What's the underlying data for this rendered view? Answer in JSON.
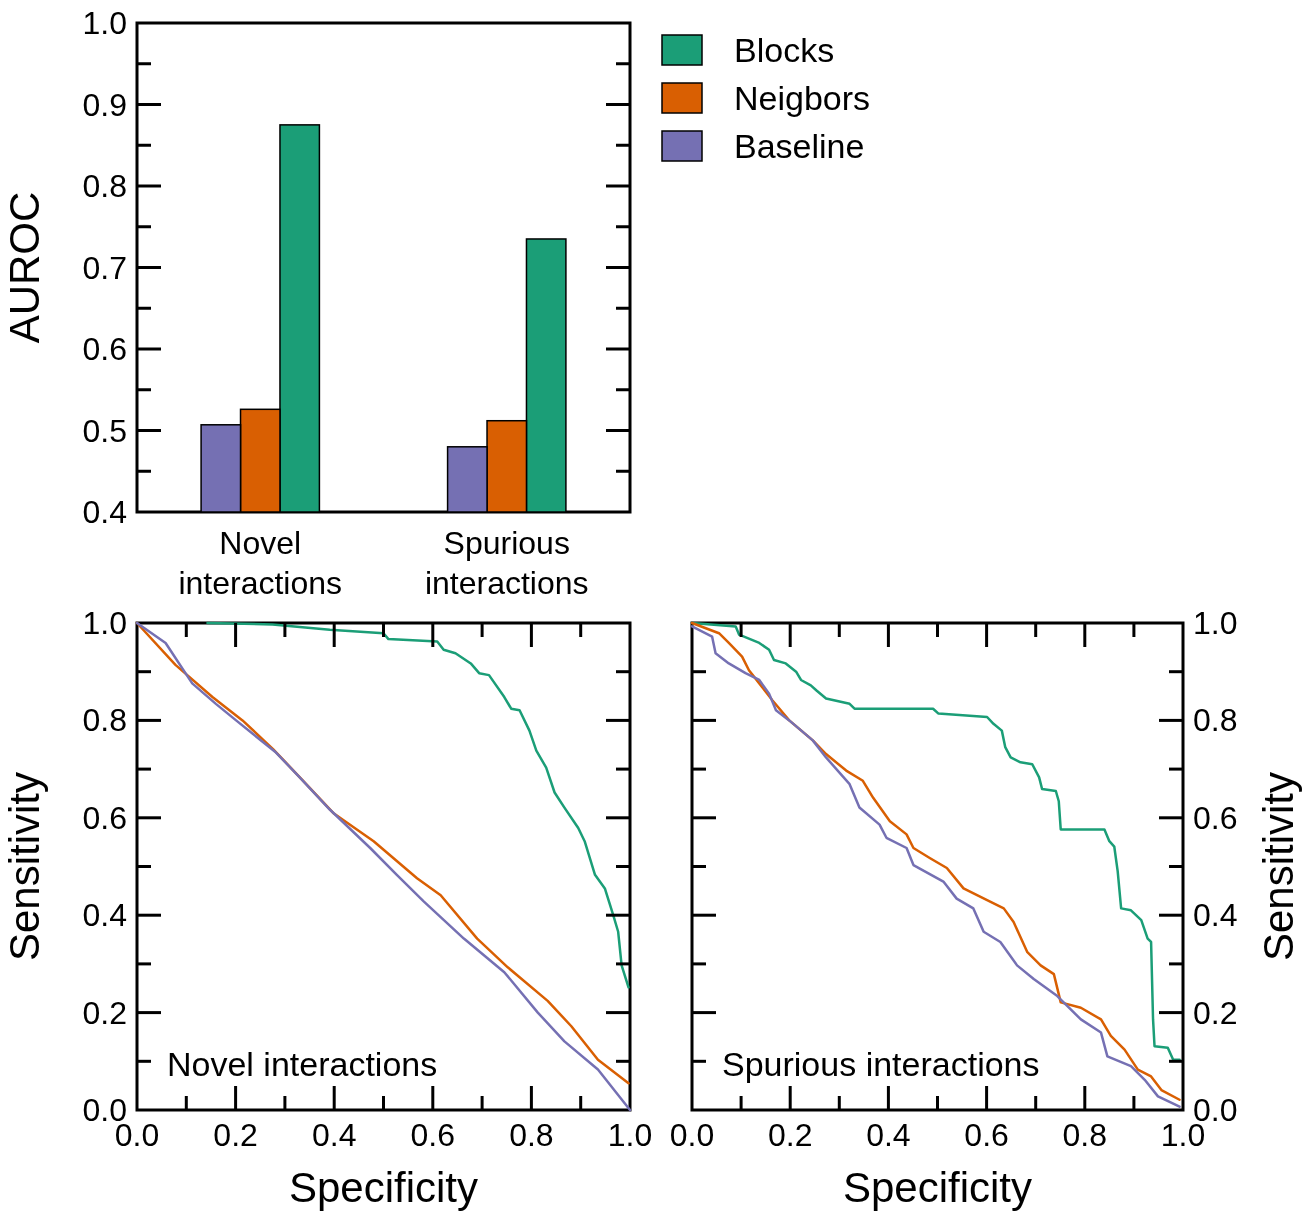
{
  "chart_data": [
    {
      "type": "bar",
      "ylabel": "AUROC",
      "categories": [
        "Novel interactions",
        "Spurious interactions"
      ],
      "legend": "right",
      "series": [
        {
          "name": "Blocks",
          "color": "#1b9e77",
          "values": [
            0.875,
            0.735
          ]
        },
        {
          "name": "Neigbors",
          "color": "#d95f02",
          "values": [
            0.526,
            0.512
          ]
        },
        {
          "name": "Baseline",
          "color": "#7570b3",
          "values": [
            0.507,
            0.48
          ]
        }
      ],
      "ylim": [
        0.4,
        1.0
      ],
      "yticks": [
        0.4,
        {
          "value": 0.45,
          "label": null
        },
        0.5,
        {
          "value": 0.55,
          "label": null
        },
        0.6,
        {
          "value": 0.65,
          "label": null
        },
        0.7,
        {
          "value": 0.75,
          "label": null
        },
        0.8,
        {
          "value": 0.85,
          "label": null
        },
        0.9,
        {
          "value": 0.95,
          "label": null
        },
        {
          "value": 1.0,
          "label": "1.0"
        }
      ]
    },
    {
      "type": "line",
      "xlabel": "Specificity",
      "ylabel": "Sensitivity",
      "annotations": [
        "Novel interactions"
      ],
      "series": [
        {
          "color": "#1b9e77",
          "x": [
            0.143,
            0.275,
            0.391,
            0.5,
            0.51,
            0.609,
            0.622,
            0.646,
            0.677,
            0.694,
            0.714,
            0.745,
            0.759,
            0.776,
            0.796,
            0.81,
            0.83,
            0.847,
            0.867,
            0.895,
            0.908,
            0.929,
            0.949,
            0.966,
            0.976,
            0.983,
            0.997
          ],
          "values": [
            1.0,
            0.997,
            0.986,
            0.979,
            0.967,
            0.962,
            0.945,
            0.938,
            0.917,
            0.897,
            0.893,
            0.848,
            0.824,
            0.821,
            0.779,
            0.738,
            0.703,
            0.652,
            0.621,
            0.579,
            0.552,
            0.483,
            0.455,
            0.4,
            0.366,
            0.297,
            0.252
          ]
        },
        {
          "color": "#d95f02",
          "x": [
            0,
            0.078,
            0.153,
            0.214,
            0.276,
            0.337,
            0.398,
            0.48,
            0.568,
            0.616,
            0.69,
            0.752,
            0.833,
            0.881,
            0.935,
            0.997
          ],
          "values": [
            1.0,
            0.914,
            0.848,
            0.8,
            0.741,
            0.676,
            0.61,
            0.552,
            0.476,
            0.441,
            0.352,
            0.293,
            0.224,
            0.172,
            0.103,
            0.055
          ]
        },
        {
          "color": "#7570b3",
          "x": [
            0,
            0.058,
            0.112,
            0.16,
            0.201,
            0.282,
            0.33,
            0.391,
            0.473,
            0.527,
            0.582,
            0.663,
            0.745,
            0.813,
            0.867,
            0.935,
            1.0
          ],
          "values": [
            1.0,
            0.959,
            0.876,
            0.834,
            0.8,
            0.734,
            0.683,
            0.617,
            0.538,
            0.483,
            0.428,
            0.352,
            0.283,
            0.2,
            0.141,
            0.083,
            0.0
          ]
        }
      ],
      "xlim": [
        0,
        1
      ],
      "xticks": [
        {
          "value": 0,
          "label": "0.0"
        },
        {
          "value": 0.1,
          "label": null
        },
        0.2,
        {
          "value": 0.3,
          "label": null
        },
        0.4,
        {
          "value": 0.5,
          "label": null
        },
        0.6,
        {
          "value": 0.7,
          "label": null
        },
        0.8,
        {
          "value": 0.9,
          "label": null
        },
        {
          "value": 1,
          "label": "1.0"
        }
      ],
      "ylim": [
        0,
        1
      ],
      "yticks": [
        {
          "value": 0,
          "label": "0.0"
        },
        {
          "value": 0.1,
          "label": null
        },
        0.2,
        {
          "value": 0.3,
          "label": null
        },
        0.4,
        {
          "value": 0.5,
          "label": null
        },
        0.6,
        {
          "value": 0.7,
          "label": null
        },
        0.8,
        {
          "value": 0.9,
          "label": null
        },
        {
          "value": 1,
          "label": "1.0"
        }
      ]
    },
    {
      "type": "line",
      "xlabel": "Specificity",
      "y2label": "Sensitivity",
      "annotations": [
        "Spurious interactions"
      ],
      "series": [
        {
          "color": "#1b9e77",
          "axis": "y2",
          "x": [
            0,
            0.089,
            0.096,
            0.137,
            0.157,
            0.167,
            0.191,
            0.212,
            0.222,
            0.242,
            0.253,
            0.273,
            0.321,
            0.331,
            0.491,
            0.502,
            0.601,
            0.614,
            0.631,
            0.638,
            0.649,
            0.669,
            0.693,
            0.707,
            0.713,
            0.741,
            0.747,
            0.751,
            0.84,
            0.85,
            0.86,
            0.867,
            0.874,
            0.894,
            0.915,
            0.928,
            0.935,
            0.939,
            0.942,
            0.969,
            0.98,
            0.993
          ],
          "values": [
            1.0,
            0.993,
            0.976,
            0.959,
            0.945,
            0.924,
            0.917,
            0.9,
            0.883,
            0.872,
            0.862,
            0.845,
            0.834,
            0.824,
            0.824,
            0.814,
            0.807,
            0.793,
            0.779,
            0.745,
            0.724,
            0.714,
            0.71,
            0.683,
            0.659,
            0.655,
            0.634,
            0.576,
            0.576,
            0.552,
            0.541,
            0.49,
            0.414,
            0.41,
            0.39,
            0.352,
            0.345,
            0.186,
            0.131,
            0.128,
            0.103,
            0.103
          ]
        },
        {
          "color": "#d95f02",
          "axis": "y2",
          "x": [
            0,
            0.055,
            0.075,
            0.102,
            0.116,
            0.137,
            0.164,
            0.198,
            0.246,
            0.273,
            0.314,
            0.348,
            0.369,
            0.403,
            0.437,
            0.451,
            0.485,
            0.519,
            0.553,
            0.601,
            0.635,
            0.655,
            0.683,
            0.71,
            0.737,
            0.751,
            0.792,
            0.833,
            0.853,
            0.881,
            0.908,
            0.935,
            0.956,
            0.993
          ],
          "values": [
            1.0,
            0.979,
            0.959,
            0.931,
            0.903,
            0.876,
            0.841,
            0.8,
            0.759,
            0.731,
            0.697,
            0.676,
            0.641,
            0.593,
            0.566,
            0.538,
            0.517,
            0.497,
            0.455,
            0.431,
            0.414,
            0.386,
            0.324,
            0.297,
            0.279,
            0.221,
            0.21,
            0.186,
            0.152,
            0.124,
            0.083,
            0.069,
            0.041,
            0.021
          ]
        },
        {
          "color": "#7570b3",
          "axis": "y2",
          "x": [
            0,
            0.041,
            0.048,
            0.075,
            0.109,
            0.137,
            0.157,
            0.171,
            0.198,
            0.246,
            0.273,
            0.321,
            0.341,
            0.382,
            0.396,
            0.437,
            0.451,
            0.512,
            0.539,
            0.573,
            0.594,
            0.628,
            0.662,
            0.696,
            0.744,
            0.792,
            0.833,
            0.846,
            0.894,
            0.922,
            0.949,
            0.993
          ],
          "values": [
            0.993,
            0.972,
            0.938,
            0.917,
            0.897,
            0.883,
            0.855,
            0.821,
            0.8,
            0.759,
            0.724,
            0.669,
            0.621,
            0.586,
            0.559,
            0.538,
            0.503,
            0.469,
            0.434,
            0.414,
            0.366,
            0.345,
            0.297,
            0.269,
            0.234,
            0.186,
            0.159,
            0.11,
            0.09,
            0.062,
            0.028,
            0.007
          ]
        }
      ],
      "xlim": [
        0,
        1
      ],
      "xticks": [
        {
          "value": 0,
          "label": "0.0"
        },
        {
          "value": 0.1,
          "label": null
        },
        0.2,
        {
          "value": 0.3,
          "label": null
        },
        0.4,
        {
          "value": 0.5,
          "label": null
        },
        0.6,
        {
          "value": 0.7,
          "label": null
        },
        0.8,
        {
          "value": 0.9,
          "label": null
        },
        {
          "value": 1,
          "label": "1.0"
        }
      ],
      "y2lim": [
        0,
        1
      ],
      "y2ticks": [
        {
          "value": 0,
          "label": "0.0"
        },
        {
          "value": 0.1,
          "label": null
        },
        0.2,
        {
          "value": 0.3,
          "label": null
        },
        0.4,
        {
          "value": 0.5,
          "label": null
        },
        0.6,
        {
          "value": 0.7,
          "label": null
        },
        0.8,
        {
          "value": 0.9,
          "label": null
        },
        {
          "value": 1,
          "label": "1.0"
        }
      ]
    }
  ]
}
